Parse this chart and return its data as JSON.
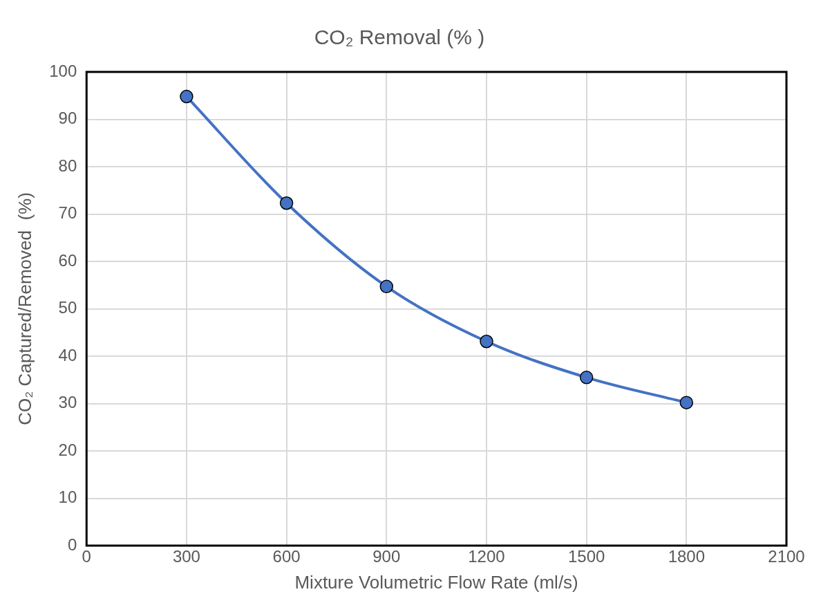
{
  "chart_data": {
    "type": "line",
    "title": "CO₂ Removal (% )",
    "xlabel": "Mixture Volumetric Flow Rate (ml/s)",
    "ylabel": "CO₂ Captured/Removed  (%)",
    "x": [
      300,
      600,
      900,
      1200,
      1500,
      1800
    ],
    "values": [
      94.8,
      72.3,
      54.7,
      43.1,
      35.5,
      30.2
    ],
    "color": "#4472c4",
    "marker": "circle",
    "line_style": "solid",
    "grid": true,
    "xlim": [
      0,
      2100
    ],
    "xticks": [
      0,
      300,
      600,
      900,
      1200,
      1500,
      1800,
      2100
    ],
    "ylim": [
      0,
      100
    ],
    "yticks": [
      0,
      10,
      20,
      30,
      40,
      50,
      60,
      70,
      80,
      90,
      100
    ]
  }
}
